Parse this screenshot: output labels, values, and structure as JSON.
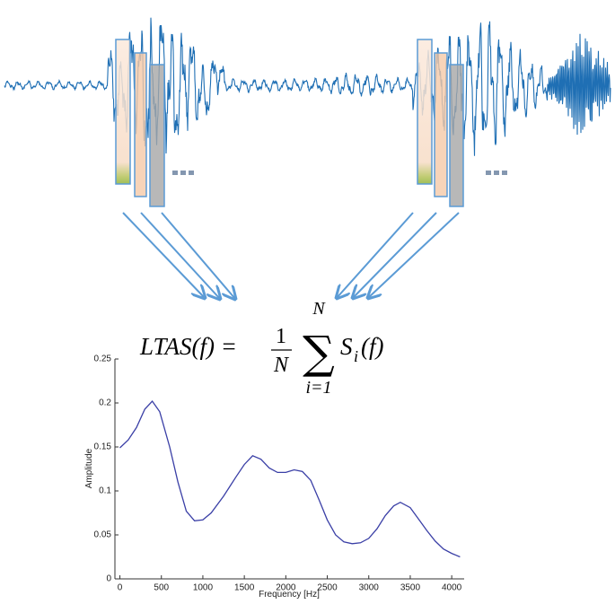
{
  "formula": {
    "lhs": "LTAS(f) =",
    "numerator": "1",
    "denominator": "N",
    "sum_upper": "N",
    "sum_lower": "i=1",
    "term": "S",
    "subscript": "i",
    "arg": "(f)"
  },
  "chart_data": {
    "type": "line",
    "x_label": "Frequency [Hz]",
    "y_label": "Amplitude",
    "x": [
      0,
      100,
      200,
      300,
      390,
      480,
      600,
      700,
      800,
      900,
      1000,
      1100,
      1250,
      1400,
      1500,
      1600,
      1700,
      1800,
      1900,
      2000,
      2100,
      2200,
      2300,
      2400,
      2500,
      2600,
      2700,
      2800,
      2900,
      3000,
      3100,
      3200,
      3300,
      3380,
      3500,
      3600,
      3700,
      3800,
      3900,
      4000,
      4100
    ],
    "series": [
      {
        "color": "#3a3fa6",
        "values": [
          0.149,
          0.158,
          0.172,
          0.193,
          0.202,
          0.19,
          0.15,
          0.11,
          0.077,
          0.066,
          0.067,
          0.075,
          0.094,
          0.116,
          0.13,
          0.14,
          0.136,
          0.126,
          0.121,
          0.121,
          0.124,
          0.122,
          0.112,
          0.09,
          0.067,
          0.05,
          0.042,
          0.04,
          0.041,
          0.046,
          0.057,
          0.072,
          0.083,
          0.087,
          0.081,
          0.068,
          0.055,
          0.043,
          0.034,
          0.029,
          0.025
        ]
      }
    ],
    "xlim": [
      -60,
      4150
    ],
    "ylim": [
      0,
      0.25
    ],
    "xticks": [
      0,
      500,
      1000,
      1500,
      2000,
      2500,
      3000,
      3500,
      4000
    ],
    "yticks": [
      0,
      0.05,
      0.1,
      0.15,
      0.2,
      0.25
    ]
  }
}
